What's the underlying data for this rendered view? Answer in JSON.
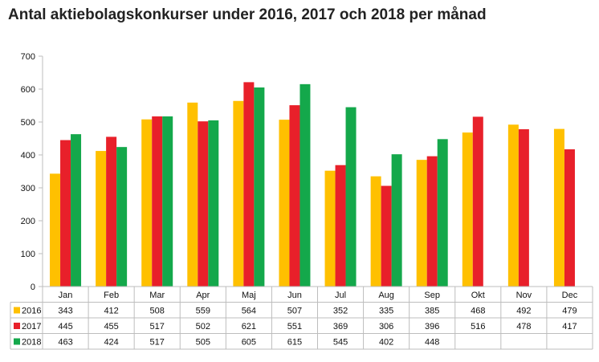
{
  "chart_data": {
    "type": "bar",
    "title": "Antal aktiebolagskonkurser under 2016, 2017 och 2018 per månad",
    "xlabel": "",
    "ylabel": "",
    "ylim": [
      0,
      700
    ],
    "yticks": [
      0,
      100,
      200,
      300,
      400,
      500,
      600,
      700
    ],
    "grid": false,
    "legend": "left-of-data-table",
    "categories": [
      "Jan",
      "Feb",
      "Mar",
      "Apr",
      "Maj",
      "Jun",
      "Jul",
      "Aug",
      "Sep",
      "Okt",
      "Nov",
      "Dec"
    ],
    "series": [
      {
        "name": "2016",
        "color": "#FFC000",
        "values": [
          343,
          412,
          508,
          559,
          564,
          507,
          352,
          335,
          385,
          468,
          492,
          479
        ]
      },
      {
        "name": "2017",
        "color": "#E8202A",
        "values": [
          445,
          455,
          517,
          502,
          621,
          551,
          369,
          306,
          396,
          516,
          478,
          417
        ]
      },
      {
        "name": "2018",
        "color": "#14A84B",
        "values": [
          463,
          424,
          517,
          505,
          605,
          615,
          545,
          402,
          448,
          null,
          null,
          null
        ]
      }
    ]
  }
}
